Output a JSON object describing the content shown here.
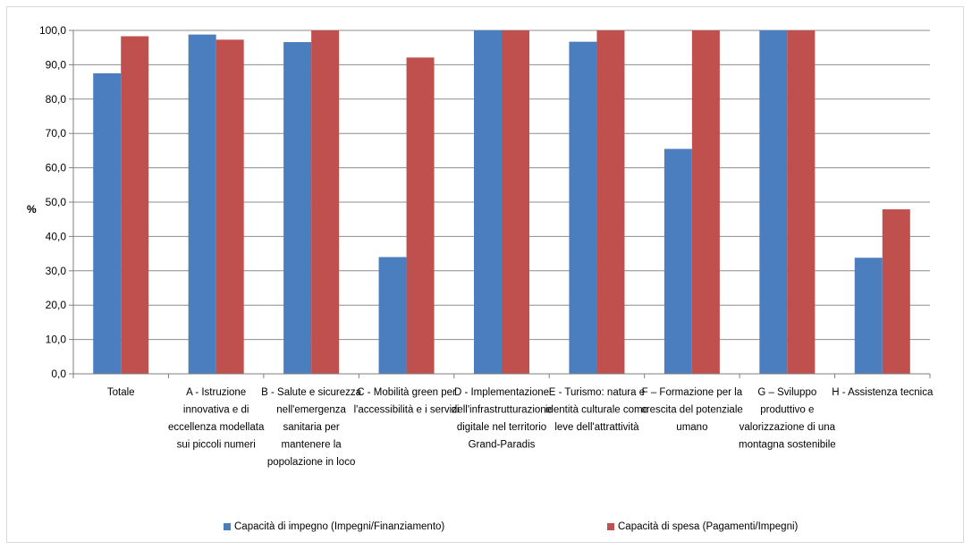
{
  "chart_data": {
    "type": "bar",
    "ylabel": "%",
    "ylim": [
      0,
      100
    ],
    "yticks": [
      "0,0",
      "10,0",
      "20,0",
      "30,0",
      "40,0",
      "50,0",
      "60,0",
      "70,0",
      "80,0",
      "90,0",
      "100,0"
    ],
    "grid": true,
    "legend_position": "bottom",
    "categories": [
      [
        "Totale"
      ],
      [
        "A - Istruzione",
        "innovativa e di",
        "eccellenza modellata",
        "sui piccoli numeri"
      ],
      [
        "B - Salute e sicurezza",
        "nell'emergenza",
        "sanitaria per",
        "mantenere la",
        "popolazione in loco"
      ],
      [
        "C - Mobilità green per",
        "l'accessibilità e i servizi"
      ],
      [
        "D - Implementazione",
        "dell'infrastrutturazione",
        "digitale nel territorio",
        "Grand-Paradis"
      ],
      [
        "E - Turismo: natura e",
        "identità culturale come",
        "leve dell'attrattività"
      ],
      [
        "F – Formazione per la",
        "crescita del potenziale",
        "umano"
      ],
      [
        "G – Sviluppo",
        "produttivo e",
        "valorizzazione di una",
        "montagna sostenibile"
      ],
      [
        "H - Assistenza tecnica"
      ]
    ],
    "series": [
      {
        "name": "Capacità di impegno (Impegni/Finanziamento)",
        "color": "#4a7ebf",
        "values": [
          87.5,
          98.8,
          96.6,
          34.0,
          100.0,
          96.7,
          65.5,
          100.0,
          33.8
        ]
      },
      {
        "name": "Capacità di spesa (Pagamenti/Impegni)",
        "color": "#c0504d",
        "values": [
          98.3,
          97.3,
          100.0,
          92.1,
          100.0,
          100.0,
          100.0,
          100.0,
          47.9
        ]
      }
    ]
  }
}
